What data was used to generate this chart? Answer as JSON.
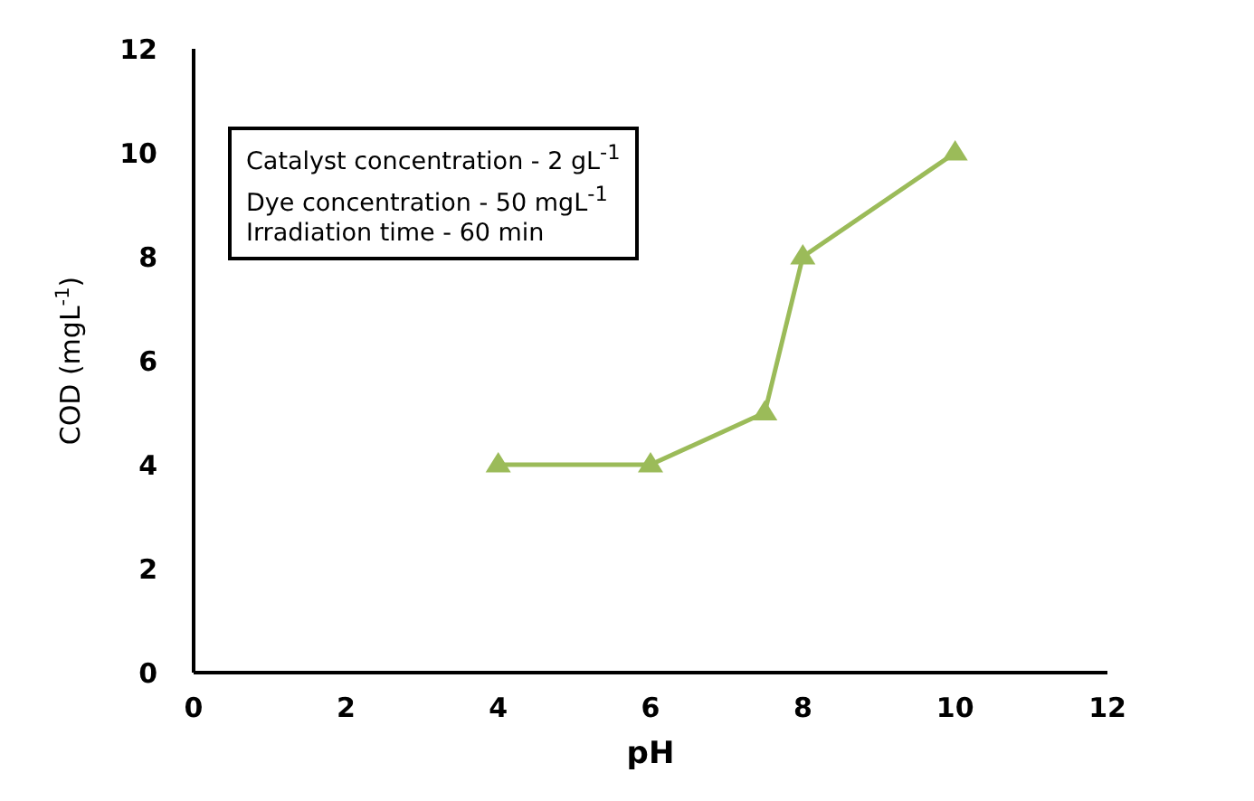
{
  "chart_data": {
    "type": "line",
    "xlabel": "pH",
    "ylabel": "COD (mgL$^{-1}$)",
    "x": [
      4,
      6,
      7.5,
      8,
      10
    ],
    "values": [
      4,
      4,
      5,
      8,
      10
    ],
    "color": "#9bbb59",
    "marker": "triangle",
    "xlim": [
      0,
      12
    ],
    "xticks": [
      0,
      2,
      4,
      6,
      8,
      10,
      12
    ],
    "ylim": [
      0,
      12
    ],
    "yticks": [
      0,
      2,
      4,
      6,
      8,
      10,
      12
    ],
    "annotations": [
      "Catalyst concentration - 2 gL$^{-1}$",
      "Dye concentration - 50 mgL$^{-1}$",
      "Irradiation time - 60 min"
    ]
  }
}
